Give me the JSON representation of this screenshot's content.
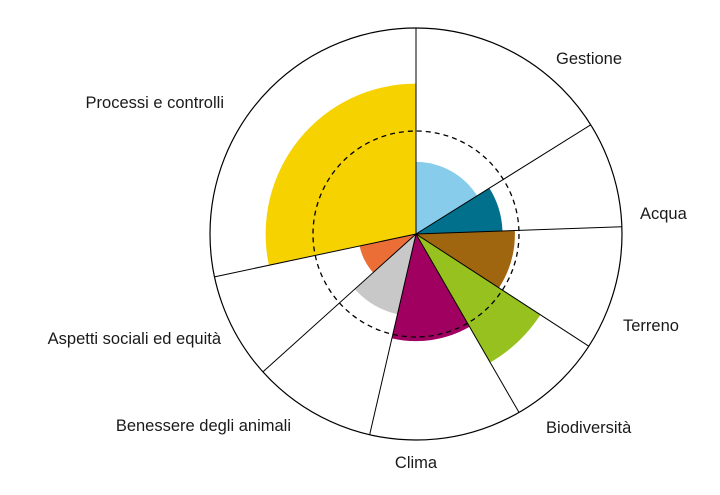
{
  "chart_data": {
    "type": "polar-area",
    "title": "",
    "max_value": 100,
    "reference_value": 50,
    "reference_style": "dashed circle",
    "grid": false,
    "legend": "none (category labels placed outside the circle)",
    "categories": [
      {
        "name": "Gestione",
        "value": 35,
        "angle_from": 0,
        "angle_to": 58,
        "color": "#87CDEB"
      },
      {
        "name": "Acqua",
        "value": 42,
        "angle_from": 58,
        "angle_to": 88,
        "color": "#00708C"
      },
      {
        "name": "Terreno",
        "value": 48,
        "angle_from": 88,
        "angle_to": 123,
        "color": "#A0660F"
      },
      {
        "name": "Biodiversità",
        "value": 72,
        "angle_from": 123,
        "angle_to": 150,
        "color": "#96C11F"
      },
      {
        "name": "Clima",
        "value": 52,
        "angle_from": 150,
        "angle_to": 193,
        "color": "#A0005F"
      },
      {
        "name": "Benessere degli animali",
        "value": 40,
        "angle_from": 193,
        "angle_to": 228,
        "color": "#C8C8C8"
      },
      {
        "name": "Aspetti sociali ed equità",
        "value": 28,
        "angle_from": 228,
        "angle_to": 258,
        "color": "#EB6E37"
      },
      {
        "name": "Processi e controlli",
        "value": 73,
        "angle_from": 258,
        "angle_to": 360,
        "color": "#F5D200"
      }
    ]
  }
}
